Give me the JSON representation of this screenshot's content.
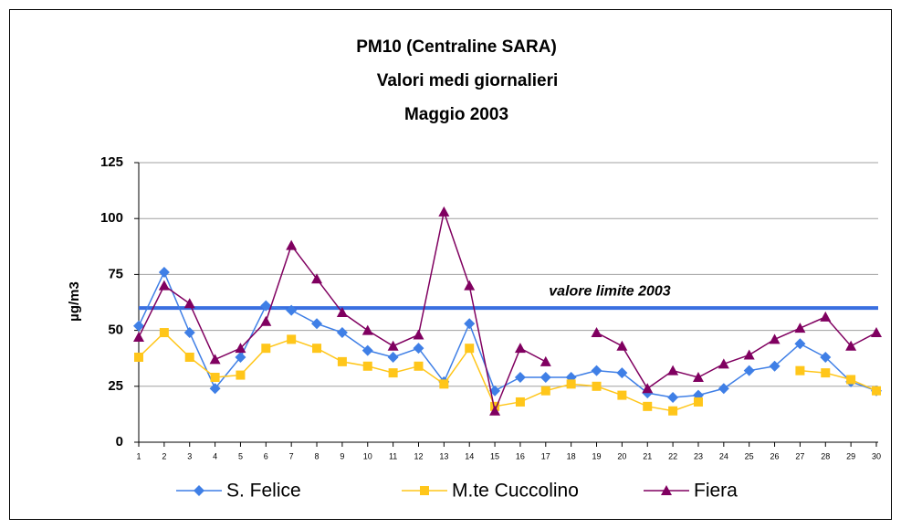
{
  "chart_data": {
    "type": "line",
    "title": [
      "PM10 (Centraline SARA)",
      "Valori medi giornalieri",
      "Maggio 2003"
    ],
    "y_label": "µg/m3",
    "categories": [
      "1",
      "2",
      "3",
      "4",
      "5",
      "6",
      "7",
      "8",
      "9",
      "10",
      "11",
      "12",
      "13",
      "14",
      "15",
      "16",
      "17",
      "18",
      "19",
      "20",
      "21",
      "22",
      "23",
      "24",
      "25",
      "26",
      "27",
      "28",
      "29",
      "30"
    ],
    "series": [
      {
        "name": "S. Felice",
        "color": "#3f7fe6",
        "marker": "diamond",
        "values": [
          52,
          76,
          49,
          24,
          38,
          61,
          59,
          53,
          49,
          41,
          38,
          42,
          27,
          53,
          23,
          29,
          29,
          29,
          32,
          31,
          22,
          20,
          21,
          24,
          32,
          34,
          44,
          38,
          27,
          23
        ]
      },
      {
        "name": "M.te Cuccolino",
        "color": "#ffc61a",
        "marker": "square",
        "values": [
          38,
          49,
          38,
          29,
          30,
          42,
          46,
          42,
          36,
          34,
          31,
          34,
          26,
          42,
          16,
          18,
          23,
          26,
          25,
          21,
          16,
          14,
          18,
          null,
          null,
          null,
          32,
          31,
          28,
          23
        ]
      },
      {
        "name": "Fiera",
        "color": "#800060",
        "marker": "triangle",
        "values": [
          47,
          70,
          62,
          37,
          42,
          54,
          88,
          73,
          58,
          50,
          43,
          48,
          103,
          70,
          14,
          42,
          36,
          null,
          49,
          43,
          24,
          32,
          29,
          35,
          39,
          46,
          51,
          56,
          43,
          49
        ]
      }
    ],
    "limit": {
      "label": "valore limite 2003",
      "value": 60,
      "color": "#3a6fe0"
    },
    "ylim": [
      0,
      125
    ],
    "yticks": [
      0,
      25,
      50,
      75,
      100,
      125
    ],
    "grid": true,
    "legend": "bottom"
  }
}
